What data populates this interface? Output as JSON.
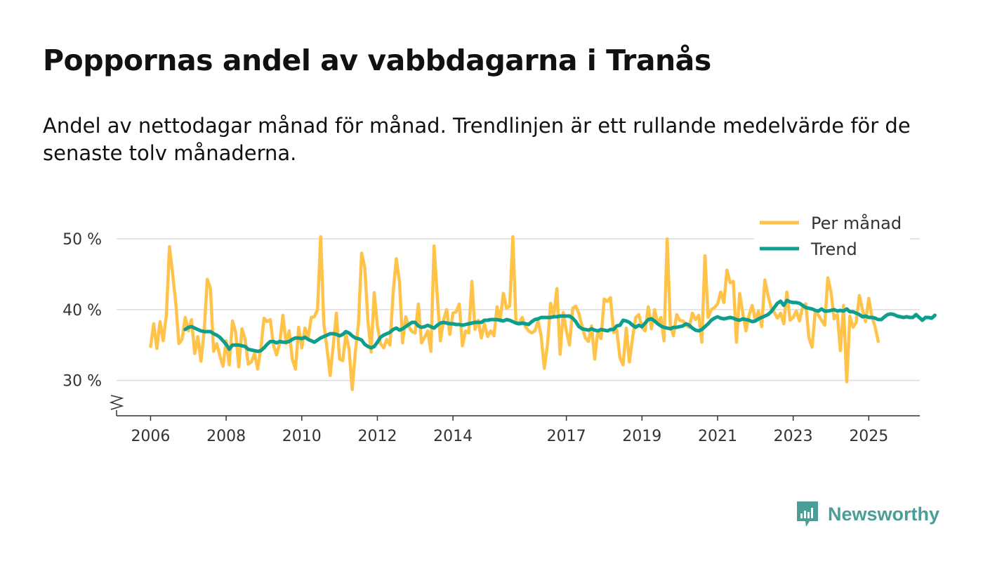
{
  "title": "Poppornas andel av vabbdagarna i Tranås",
  "subtitle": "Andel av nettodagar månad för månad. Trendlinjen är ett rullande medelvärde för de senaste tolv månaderna.",
  "brand": "Newsworthy",
  "colors": {
    "monthly": "#FFC34A",
    "trend": "#0E9E8E",
    "grid": "#DDDDDD",
    "axis": "#333333",
    "brand": "#4A9E97"
  },
  "chart_data": {
    "type": "line",
    "x_unit": "decimal year",
    "x_start": 2006.0,
    "x_step": 0.0833333,
    "xlim": [
      2005.1,
      2026.35
    ],
    "ylim": [
      25,
      52
    ],
    "y_ticks": [
      30,
      40,
      50
    ],
    "y_tick_labels": [
      "30 %",
      "40 %",
      "50 %"
    ],
    "x_ticks": [
      2006,
      2008,
      2010,
      2012,
      2014,
      2017,
      2019,
      2021,
      2023,
      2025
    ],
    "x_tick_labels": [
      "2006",
      "2008",
      "2010",
      "2012",
      "2014",
      "2017",
      "2019",
      "2021",
      "2023",
      "2025"
    ],
    "legend": {
      "position": "top-right",
      "items": [
        "Per månad",
        "Trend"
      ]
    },
    "series": [
      {
        "name": "Per månad",
        "values": [
          34.8,
          38.0,
          34.5,
          38.3,
          35.6,
          39.2,
          48.9,
          45.0,
          41.0,
          35.2,
          35.8,
          38.9,
          37.0,
          38.6,
          33.8,
          36.2,
          32.7,
          36.9,
          44.3,
          43.0,
          34.1,
          35.2,
          33.5,
          32.0,
          35.6,
          32.2,
          38.4,
          36.8,
          31.9,
          37.3,
          35.9,
          32.3,
          32.6,
          33.8,
          31.6,
          34.5,
          38.8,
          38.3,
          38.6,
          35.0,
          33.6,
          35.2,
          39.2,
          35.2,
          37.0,
          33.0,
          31.6,
          37.5,
          34.6,
          37.4,
          36.0,
          38.9,
          39.0,
          40.0,
          50.3,
          38.0,
          34.5,
          30.7,
          35.0,
          39.5,
          33.0,
          32.8,
          36.5,
          34.5,
          28.7,
          34.0,
          38.0,
          48.0,
          46.0,
          38.4,
          34.0,
          42.4,
          37.7,
          35.2,
          34.6,
          35.8,
          35.0,
          42.4,
          47.2,
          44.0,
          35.3,
          39.0,
          37.6,
          36.9,
          36.7,
          40.8,
          35.3,
          36.1,
          37.0,
          34.1,
          49.0,
          42.0,
          35.6,
          38.5,
          40.0,
          36.5,
          39.5,
          39.7,
          40.8,
          34.9,
          37.0,
          36.7,
          44.0,
          37.2,
          38.5,
          36.0,
          38.0,
          36.2,
          37.0,
          36.3,
          40.4,
          38.6,
          42.3,
          40.2,
          40.5,
          50.3,
          38.2,
          38.1,
          38.9,
          37.6,
          37.0,
          36.7,
          37.0,
          38.4,
          36.3,
          31.7,
          35.0,
          40.9,
          39.2,
          43.0,
          33.7,
          39.6,
          37.0,
          35.0,
          40.2,
          40.5,
          39.4,
          37.6,
          36.0,
          35.5,
          37.7,
          33.0,
          37.0,
          35.9,
          41.5,
          41.2,
          41.7,
          36.8,
          37.1,
          33.2,
          32.2,
          37.4,
          32.6,
          36.0,
          38.9,
          39.3,
          37.5,
          37.0,
          40.4,
          37.3,
          40.0,
          38.0,
          38.9,
          35.6,
          50.0,
          37.8,
          36.3,
          39.3,
          38.5,
          38.4,
          37.8,
          37.5,
          39.5,
          38.6,
          39.2,
          35.4,
          47.6,
          38.9,
          40.0,
          40.3,
          40.8,
          42.5,
          41.0,
          45.6,
          43.8,
          44.0,
          35.4,
          42.3,
          39.5,
          37.0,
          39.2,
          40.6,
          38.5,
          39.8,
          37.6,
          44.2,
          42.0,
          40.3,
          39.6,
          38.8,
          39.5,
          38.0,
          42.5,
          38.5,
          38.9,
          39.8,
          38.4,
          40.4,
          40.8,
          36.0,
          34.7,
          39.8,
          39.2,
          38.5,
          37.8,
          44.5,
          42.5,
          38.7,
          39.3,
          34.2,
          40.6,
          29.8,
          39.1,
          37.5,
          38.2,
          42.0,
          40.0,
          38.3,
          41.6,
          39.0,
          37.6,
          35.5
        ]
      },
      {
        "name": "Trend",
        "start_index": 11,
        "values": [
          37.2,
          37.5,
          37.6,
          37.4,
          37.2,
          37.0,
          36.9,
          36.9,
          36.9,
          36.6,
          36.4,
          36.1,
          35.6,
          35.1,
          34.4,
          35.0,
          35.0,
          35.0,
          34.9,
          34.8,
          34.4,
          34.3,
          34.2,
          34.1,
          34.2,
          34.6,
          35.1,
          35.5,
          35.5,
          35.3,
          35.5,
          35.4,
          35.4,
          35.5,
          35.8,
          36.0,
          36.0,
          35.9,
          36.1,
          35.8,
          35.6,
          35.4,
          35.7,
          36.0,
          36.2,
          36.4,
          36.6,
          36.6,
          36.5,
          36.3,
          36.5,
          36.9,
          36.7,
          36.3,
          36.0,
          35.9,
          35.7,
          35.1,
          34.8,
          34.6,
          34.8,
          35.4,
          36.1,
          36.4,
          36.6,
          36.8,
          37.2,
          37.4,
          37.1,
          37.3,
          37.6,
          37.9,
          38.2,
          38.2,
          37.7,
          37.5,
          37.6,
          37.8,
          37.6,
          37.4,
          37.8,
          38.1,
          38.2,
          38.1,
          38.0,
          38.0,
          37.9,
          37.9,
          37.8,
          37.9,
          38.0,
          38.1,
          38.2,
          38.2,
          38.2,
          38.5,
          38.5,
          38.6,
          38.6,
          38.6,
          38.5,
          38.4,
          38.6,
          38.5,
          38.3,
          38.1,
          38.0,
          38.1,
          38.0,
          37.9,
          38.3,
          38.6,
          38.7,
          38.9,
          38.9,
          38.9,
          38.9,
          39.0,
          39.0,
          39.1,
          39.1,
          39.1,
          39.1,
          38.8,
          38.3,
          37.6,
          37.3,
          37.2,
          37.1,
          37.3,
          37.1,
          37.0,
          37.2,
          37.1,
          37.0,
          37.2,
          37.2,
          37.7,
          37.8,
          38.5,
          38.4,
          38.2,
          37.8,
          37.5,
          37.8,
          37.6,
          38.1,
          38.6,
          38.7,
          38.4,
          38.0,
          37.7,
          37.5,
          37.4,
          37.3,
          37.5,
          37.5,
          37.6,
          37.7,
          38.0,
          37.8,
          37.4,
          37.1,
          37.0,
          37.2,
          37.6,
          38.0,
          38.5,
          38.8,
          39.0,
          38.8,
          38.7,
          38.8,
          38.9,
          38.8,
          38.6,
          38.5,
          38.7,
          38.6,
          38.5,
          38.3,
          38.4,
          38.7,
          38.9,
          39.1,
          39.3,
          39.7,
          40.3,
          40.9,
          41.2,
          40.6,
          41.3,
          41.1,
          41.0,
          41.0,
          40.9,
          40.6,
          40.3,
          40.2,
          40.1,
          39.9,
          39.8,
          40.1,
          39.8,
          39.8,
          39.9,
          40.0,
          39.8,
          39.9,
          39.8,
          40.1,
          39.7,
          39.7,
          39.5,
          39.3,
          39.0,
          39.1,
          38.9,
          38.9,
          38.8,
          38.6,
          38.6,
          39.0,
          39.3,
          39.4,
          39.3,
          39.1,
          39.0,
          38.9,
          39.0,
          38.9,
          38.9,
          39.3,
          38.9,
          38.5,
          38.9,
          38.9,
          38.8,
          39.2
        ]
      }
    ]
  }
}
